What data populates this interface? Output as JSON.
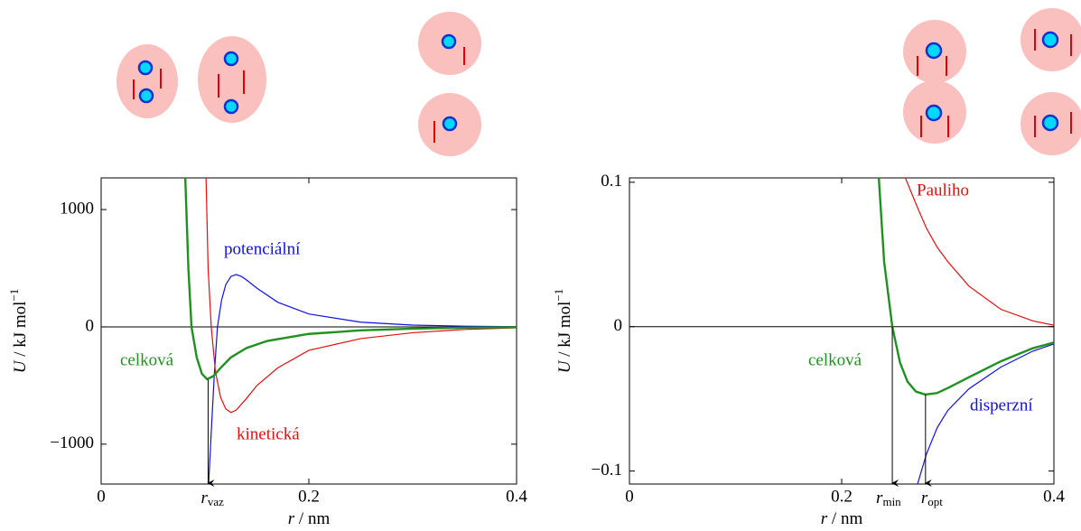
{
  "chart_data": [
    {
      "type": "line",
      "xlim": [
        0,
        0.4
      ],
      "ylim": [
        -1340,
        1270
      ],
      "xticks": [
        0,
        0.2,
        0.4
      ],
      "yticks": [
        {
          "value": -1000,
          "label": "−1000"
        },
        0,
        1000
      ],
      "xlabel_var": "r",
      "xlabel_unit": " / nm",
      "ylabel_var": "U",
      "ylabel_unit": " / kJ mol",
      "ylabel_sup": "−1",
      "zero_line": true,
      "series": [
        {
          "name": "potenciální",
          "color": "#1010e0",
          "x": [
            0.1035,
            0.106,
            0.109,
            0.112,
            0.116,
            0.12,
            0.125,
            0.13,
            0.135,
            0.14,
            0.15,
            0.17,
            0.2,
            0.25,
            0.3,
            0.35,
            0.4
          ],
          "values": [
            -1340,
            -900,
            -400,
            0,
            230,
            360,
            430,
            446,
            430,
            400,
            330,
            210,
            110,
            40,
            15,
            6,
            2
          ]
        },
        {
          "name": "kinetická",
          "color": "#e01010",
          "x": [
            0.101,
            0.103,
            0.106,
            0.11,
            0.115,
            0.12,
            0.125,
            0.13,
            0.14,
            0.15,
            0.17,
            0.2,
            0.25,
            0.3,
            0.35,
            0.4
          ],
          "values": [
            1270,
            500,
            0,
            -380,
            -600,
            -700,
            -730,
            -710,
            -610,
            -500,
            -350,
            -200,
            -100,
            -50,
            -22,
            -8
          ]
        },
        {
          "name": "celková",
          "color": "#209020",
          "x": [
            0.081,
            0.084,
            0.087,
            0.092,
            0.097,
            0.102,
            0.108,
            0.115,
            0.125,
            0.14,
            0.16,
            0.2,
            0.25,
            0.3,
            0.35,
            0.4
          ],
          "values": [
            1270,
            500,
            0,
            -260,
            -400,
            -446,
            -420,
            -350,
            -260,
            -180,
            -120,
            -60,
            -30,
            -15,
            -7,
            -3
          ]
        }
      ],
      "markers": [
        {
          "x": 0.103,
          "y": -446,
          "label": "r",
          "sub": "vaz"
        }
      ]
    },
    {
      "type": "line",
      "xlim": [
        0,
        0.4
      ],
      "ylim": [
        -0.109,
        0.103
      ],
      "xticks": [
        0,
        0.2,
        0.4
      ],
      "yticks": [
        {
          "value": -0.1,
          "label": "−0.1"
        },
        0,
        0.1
      ],
      "xlabel_var": "r",
      "xlabel_unit": " / nm",
      "ylabel_var": "U",
      "ylabel_unit": " / kJ mol",
      "ylabel_sup": "−1",
      "zero_line": true,
      "series": [
        {
          "name": "Pauliho",
          "color": "#e01010",
          "x": [
            0.26,
            0.27,
            0.28,
            0.29,
            0.3,
            0.32,
            0.35,
            0.38,
            0.4
          ],
          "values": [
            0.103,
            0.085,
            0.068,
            0.055,
            0.045,
            0.028,
            0.012,
            0.004,
            0.001
          ]
        },
        {
          "name": "disperzní",
          "color": "#1010e0",
          "x": [
            0.2715,
            0.28,
            0.29,
            0.3,
            0.32,
            0.35,
            0.38,
            0.4
          ],
          "values": [
            -0.109,
            -0.088,
            -0.07,
            -0.058,
            -0.043,
            -0.028,
            -0.017,
            -0.012
          ]
        },
        {
          "name": "celková",
          "color": "#209020",
          "x": [
            0.235,
            0.24,
            0.2477,
            0.255,
            0.262,
            0.27,
            0.279,
            0.29,
            0.3,
            0.32,
            0.35,
            0.38,
            0.4
          ],
          "values": [
            0.103,
            0.045,
            0,
            -0.025,
            -0.038,
            -0.045,
            -0.047,
            -0.046,
            -0.0425,
            -0.035,
            -0.024,
            -0.015,
            -0.011
          ]
        }
      ],
      "markers": [
        {
          "x": 0.2477,
          "y": 0,
          "label": "r",
          "sub": "min"
        },
        {
          "x": 0.279,
          "y": -0.047,
          "label": "r",
          "sub": "opt"
        }
      ]
    }
  ]
}
